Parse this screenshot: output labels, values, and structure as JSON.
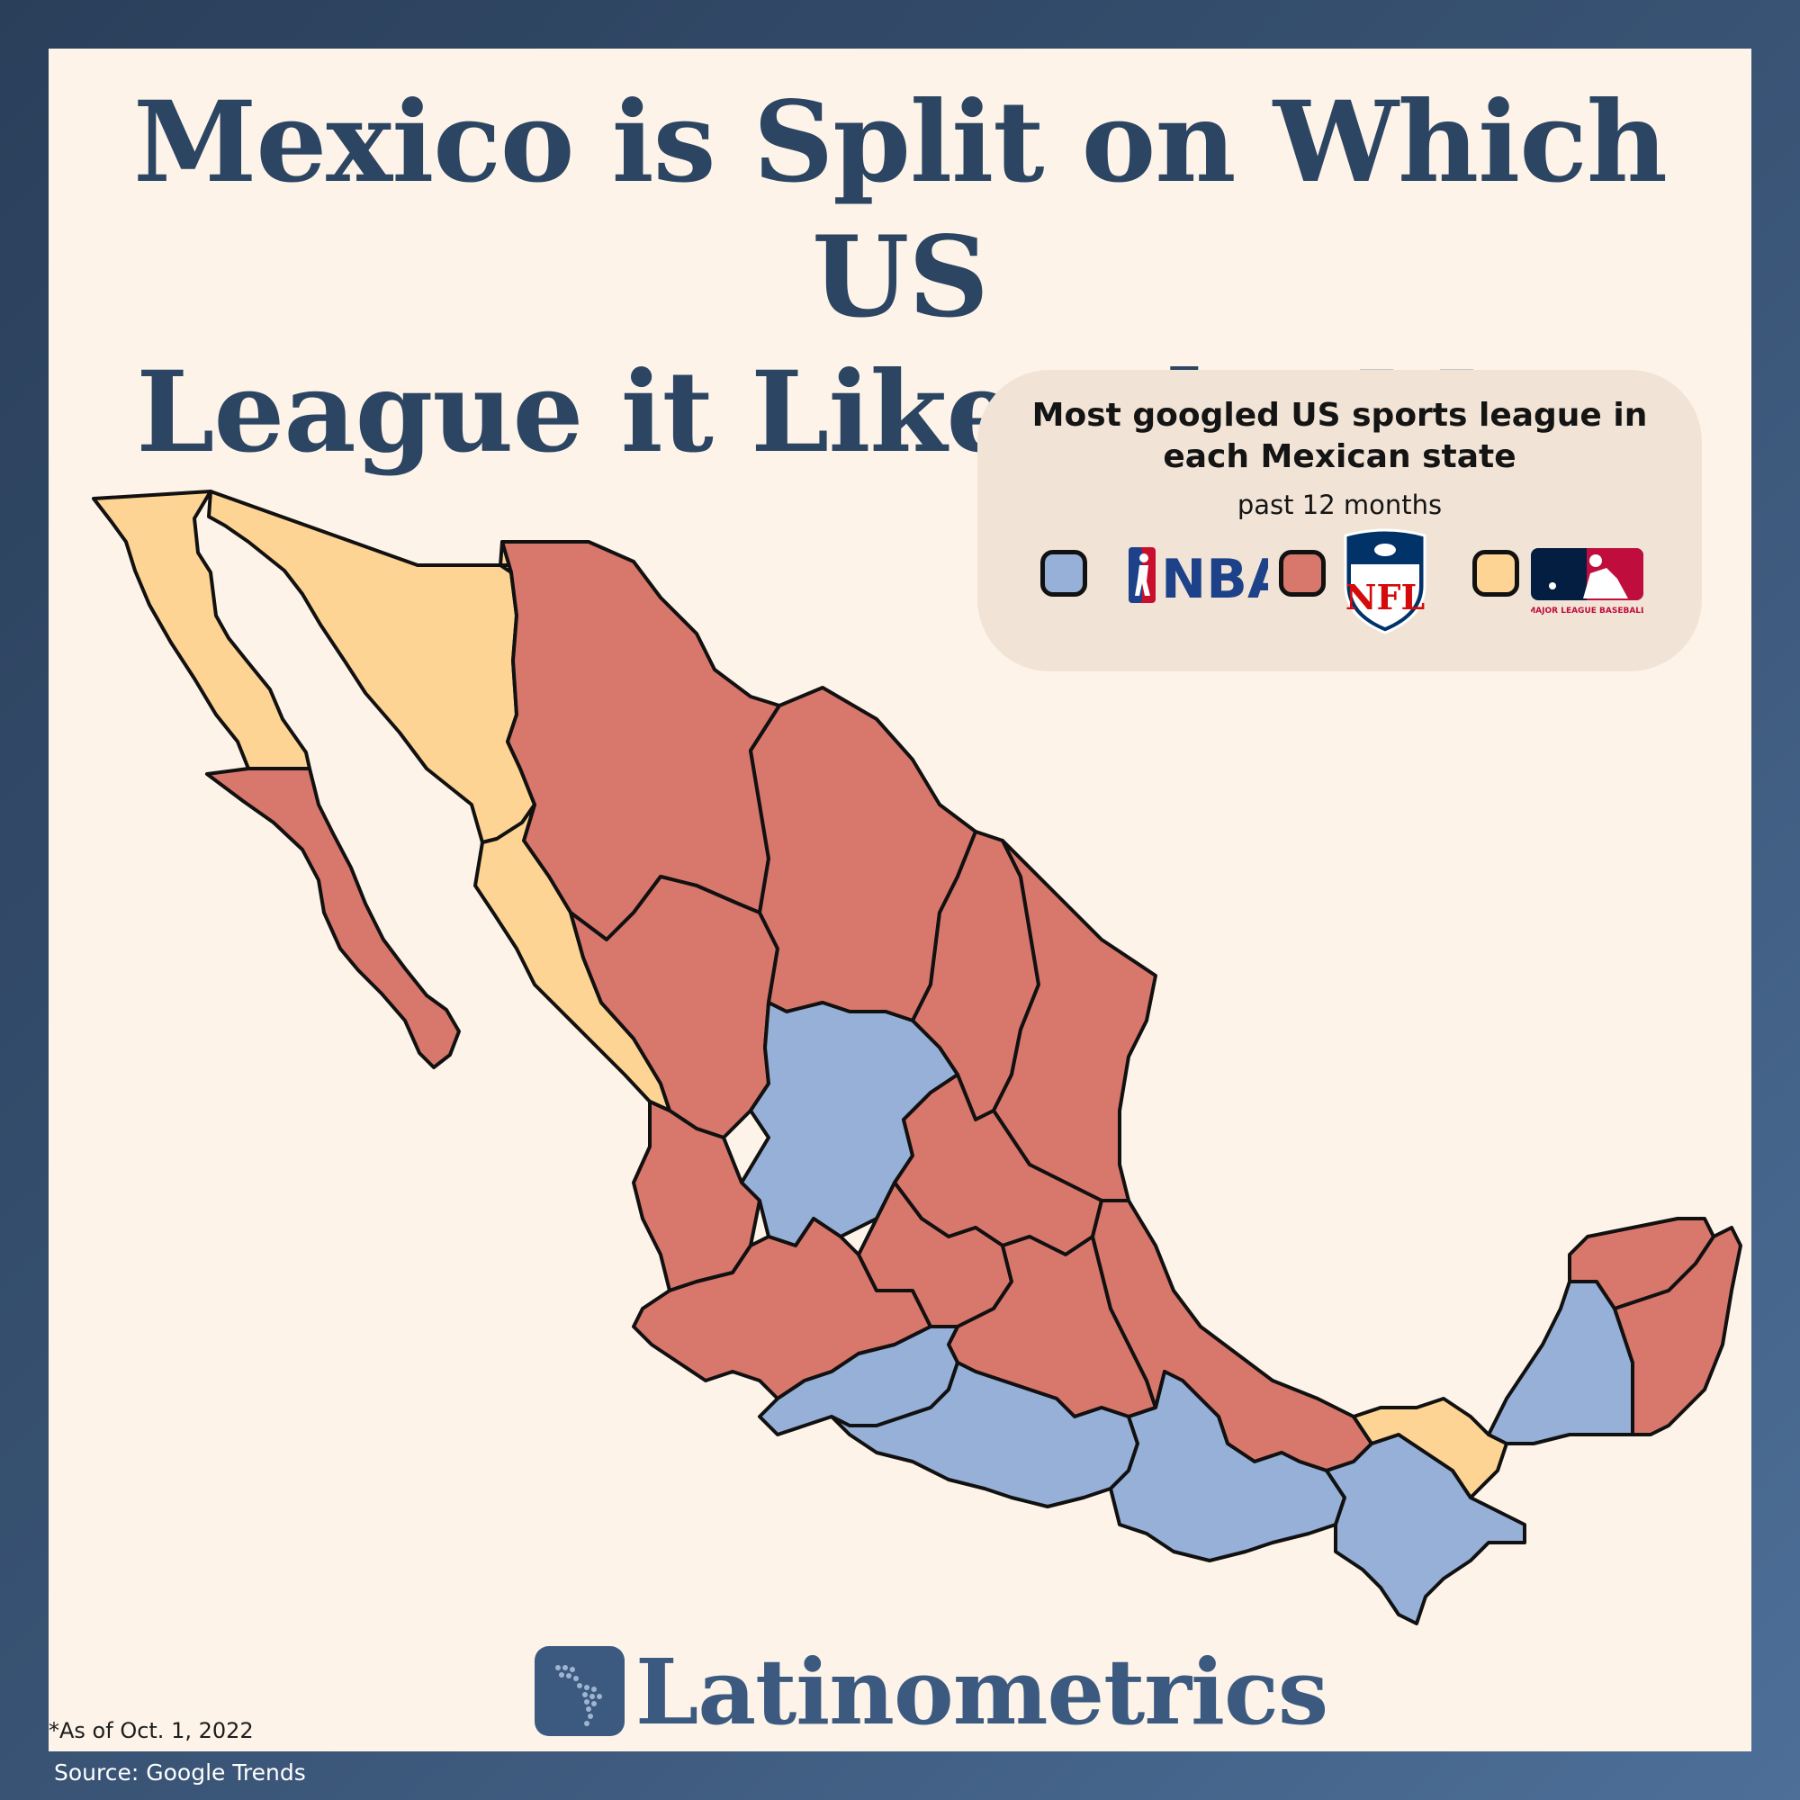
{
  "title": {
    "line1": "Mexico is Split on Which US",
    "line2": "League it Likes the Most"
  },
  "legend": {
    "title_line1": "Most googled US sports league in",
    "title_line2": "each Mexican state",
    "subtitle": "past 12 months",
    "items": [
      {
        "league": "NBA",
        "color": "#96b0d8",
        "logo_text": "NBA"
      },
      {
        "league": "NFL",
        "color": "#d8776c",
        "logo_text": "NFL"
      },
      {
        "league": "MLB",
        "color": "#fdd494",
        "logo_text": "MAJOR LEAGUE BASEBALL"
      }
    ]
  },
  "map_colors": {
    "NBA": "#96b0d8",
    "NFL": "#d8776c",
    "MLB": "#fdd494",
    "border": "#111111"
  },
  "brand": {
    "name": "Latinometrics"
  },
  "footnote": "*As of Oct. 1, 2022",
  "source": "Source: Google Trends"
}
